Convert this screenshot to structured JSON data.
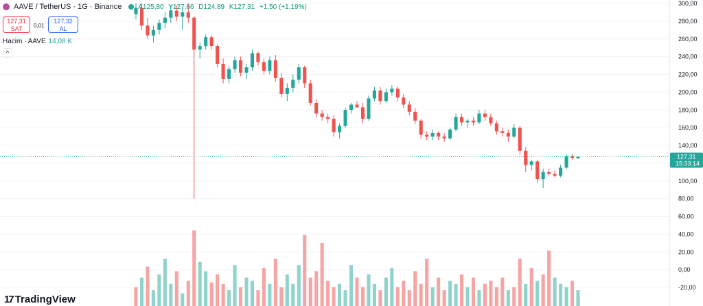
{
  "header": {
    "title": "AAVE / TetherUS · 1G · Binance",
    "ohlc": {
      "open": "A125,80",
      "high": "Y127,66",
      "low": "D124,89",
      "close": "K127,31",
      "change": "+1,50 (+1,19%)"
    }
  },
  "trade": {
    "sell_price": "127,31",
    "sell_label": "SAT",
    "buy_price": "127,32",
    "buy_label": "AL",
    "spread": "0,01"
  },
  "volume_legend": {
    "label": "Hacim · AAVE",
    "value": "14,08 K"
  },
  "last_price": {
    "value": "127,31",
    "countdown": "15:33:14"
  },
  "logo": {
    "text": "TradingView"
  },
  "colors": {
    "up": "#26a69a",
    "down": "#ef5350",
    "up_vol": "#8fd3cc",
    "down_vol": "#f5a5a3",
    "grid": "#f0f3fa",
    "axis_text": "#131722"
  },
  "chart_data": {
    "type": "candlestick",
    "title": "AAVE / TetherUS · 1G · Binance",
    "y_axis_labels": [
      "300,00",
      "280,00",
      "260,00",
      "240,00",
      "220,00",
      "200,00",
      "180,00",
      "160,00",
      "140,00",
      "120,00",
      "100,00",
      "80,00",
      "60,00",
      "40,00",
      "20,00",
      "0,00",
      "-20,00"
    ],
    "ylim": [
      -30,
      300
    ],
    "candles": [
      {
        "o": 288,
        "h": 300,
        "l": 282,
        "c": 295
      },
      {
        "o": 295,
        "h": 300,
        "l": 270,
        "c": 275
      },
      {
        "o": 275,
        "h": 284,
        "l": 260,
        "c": 264
      },
      {
        "o": 264,
        "h": 275,
        "l": 256,
        "c": 270
      },
      {
        "o": 270,
        "h": 282,
        "l": 265,
        "c": 278
      },
      {
        "o": 278,
        "h": 290,
        "l": 272,
        "c": 284
      },
      {
        "o": 284,
        "h": 298,
        "l": 278,
        "c": 292
      },
      {
        "o": 292,
        "h": 298,
        "l": 280,
        "c": 285
      },
      {
        "o": 285,
        "h": 295,
        "l": 270,
        "c": 290
      },
      {
        "o": 290,
        "h": 300,
        "l": 278,
        "c": 284
      },
      {
        "o": 284,
        "h": 286,
        "l": 80,
        "c": 248
      },
      {
        "o": 248,
        "h": 256,
        "l": 238,
        "c": 252
      },
      {
        "o": 252,
        "h": 265,
        "l": 248,
        "c": 262
      },
      {
        "o": 262,
        "h": 264,
        "l": 248,
        "c": 252
      },
      {
        "o": 252,
        "h": 254,
        "l": 228,
        "c": 232
      },
      {
        "o": 232,
        "h": 238,
        "l": 210,
        "c": 215
      },
      {
        "o": 215,
        "h": 230,
        "l": 210,
        "c": 226
      },
      {
        "o": 226,
        "h": 240,
        "l": 222,
        "c": 236
      },
      {
        "o": 236,
        "h": 240,
        "l": 218,
        "c": 222
      },
      {
        "o": 222,
        "h": 232,
        "l": 215,
        "c": 228
      },
      {
        "o": 228,
        "h": 248,
        "l": 224,
        "c": 244
      },
      {
        "o": 244,
        "h": 246,
        "l": 230,
        "c": 234
      },
      {
        "o": 234,
        "h": 238,
        "l": 220,
        "c": 224
      },
      {
        "o": 224,
        "h": 240,
        "l": 220,
        "c": 236
      },
      {
        "o": 236,
        "h": 242,
        "l": 212,
        "c": 216
      },
      {
        "o": 216,
        "h": 222,
        "l": 194,
        "c": 198
      },
      {
        "o": 198,
        "h": 210,
        "l": 190,
        "c": 205
      },
      {
        "o": 205,
        "h": 220,
        "l": 200,
        "c": 214
      },
      {
        "o": 214,
        "h": 232,
        "l": 210,
        "c": 228
      },
      {
        "o": 228,
        "h": 230,
        "l": 205,
        "c": 210
      },
      {
        "o": 210,
        "h": 214,
        "l": 185,
        "c": 188
      },
      {
        "o": 188,
        "h": 192,
        "l": 172,
        "c": 176
      },
      {
        "o": 176,
        "h": 180,
        "l": 168,
        "c": 172
      },
      {
        "o": 172,
        "h": 176,
        "l": 165,
        "c": 170
      },
      {
        "o": 170,
        "h": 174,
        "l": 150,
        "c": 155
      },
      {
        "o": 155,
        "h": 165,
        "l": 148,
        "c": 162
      },
      {
        "o": 162,
        "h": 182,
        "l": 160,
        "c": 180
      },
      {
        "o": 180,
        "h": 188,
        "l": 176,
        "c": 186
      },
      {
        "o": 186,
        "h": 190,
        "l": 182,
        "c": 183
      },
      {
        "o": 183,
        "h": 188,
        "l": 165,
        "c": 170
      },
      {
        "o": 170,
        "h": 196,
        "l": 168,
        "c": 193
      },
      {
        "o": 193,
        "h": 206,
        "l": 190,
        "c": 202
      },
      {
        "o": 202,
        "h": 206,
        "l": 186,
        "c": 190
      },
      {
        "o": 190,
        "h": 204,
        "l": 188,
        "c": 200
      },
      {
        "o": 200,
        "h": 208,
        "l": 196,
        "c": 204
      },
      {
        "o": 204,
        "h": 206,
        "l": 190,
        "c": 194
      },
      {
        "o": 194,
        "h": 198,
        "l": 182,
        "c": 186
      },
      {
        "o": 186,
        "h": 190,
        "l": 174,
        "c": 178
      },
      {
        "o": 178,
        "h": 182,
        "l": 164,
        "c": 168
      },
      {
        "o": 168,
        "h": 170,
        "l": 148,
        "c": 152
      },
      {
        "o": 152,
        "h": 156,
        "l": 146,
        "c": 150
      },
      {
        "o": 150,
        "h": 158,
        "l": 146,
        "c": 154
      },
      {
        "o": 154,
        "h": 156,
        "l": 146,
        "c": 150
      },
      {
        "o": 150,
        "h": 154,
        "l": 144,
        "c": 148
      },
      {
        "o": 148,
        "h": 160,
        "l": 146,
        "c": 158
      },
      {
        "o": 158,
        "h": 176,
        "l": 156,
        "c": 172
      },
      {
        "o": 172,
        "h": 176,
        "l": 162,
        "c": 166
      },
      {
        "o": 166,
        "h": 170,
        "l": 160,
        "c": 168
      },
      {
        "o": 168,
        "h": 172,
        "l": 162,
        "c": 166
      },
      {
        "o": 166,
        "h": 180,
        "l": 164,
        "c": 176
      },
      {
        "o": 176,
        "h": 180,
        "l": 168,
        "c": 172
      },
      {
        "o": 172,
        "h": 176,
        "l": 162,
        "c": 165
      },
      {
        "o": 165,
        "h": 168,
        "l": 152,
        "c": 156
      },
      {
        "o": 156,
        "h": 160,
        "l": 150,
        "c": 154
      },
      {
        "o": 154,
        "h": 158,
        "l": 144,
        "c": 150
      },
      {
        "o": 150,
        "h": 164,
        "l": 148,
        "c": 160
      },
      {
        "o": 160,
        "h": 162,
        "l": 130,
        "c": 134
      },
      {
        "o": 134,
        "h": 138,
        "l": 110,
        "c": 118
      },
      {
        "o": 118,
        "h": 124,
        "l": 112,
        "c": 122
      },
      {
        "o": 122,
        "h": 124,
        "l": 98,
        "c": 102
      },
      {
        "o": 102,
        "h": 114,
        "l": 92,
        "c": 110
      },
      {
        "o": 110,
        "h": 114,
        "l": 106,
        "c": 108
      },
      {
        "o": 108,
        "h": 112,
        "l": 104,
        "c": 106
      },
      {
        "o": 106,
        "h": 118,
        "l": 104,
        "c": 115
      },
      {
        "o": 115,
        "h": 130,
        "l": 113,
        "c": 128
      },
      {
        "o": 128,
        "h": 130,
        "l": 124,
        "c": 126
      },
      {
        "o": 125.8,
        "h": 127.66,
        "l": 124.89,
        "c": 127.31
      }
    ],
    "volumes": [
      12,
      18,
      25,
      10,
      20,
      30,
      14,
      22,
      8,
      16,
      48,
      28,
      22,
      15,
      20,
      14,
      10,
      26,
      12,
      18,
      16,
      10,
      24,
      14,
      30,
      12,
      20,
      14,
      26,
      45,
      18,
      22,
      40,
      16,
      12,
      14,
      10,
      26,
      18,
      12,
      20,
      14,
      10,
      18,
      24,
      12,
      16,
      10,
      22,
      14,
      30,
      12,
      18,
      10,
      16,
      14,
      20,
      12,
      18,
      10,
      14,
      16,
      12,
      18,
      10,
      12,
      30,
      14,
      24,
      16,
      20,
      35,
      18,
      14,
      12,
      16,
      10
    ],
    "volume_up": [
      false,
      true,
      false,
      true,
      true,
      true,
      true,
      false,
      true,
      false,
      false,
      true,
      true,
      false,
      false,
      false,
      true,
      true,
      false,
      true,
      true,
      false,
      false,
      true,
      false,
      false,
      true,
      true,
      true,
      false,
      false,
      false,
      false,
      false,
      false,
      true,
      true,
      true,
      false,
      false,
      true,
      true,
      false,
      true,
      true,
      false,
      false,
      false,
      false,
      false,
      false,
      true,
      false,
      false,
      true,
      true,
      false,
      true,
      false,
      true,
      false,
      false,
      false,
      false,
      true,
      false,
      false,
      true,
      false,
      true,
      false,
      false,
      true,
      true,
      true,
      false,
      true
    ]
  }
}
